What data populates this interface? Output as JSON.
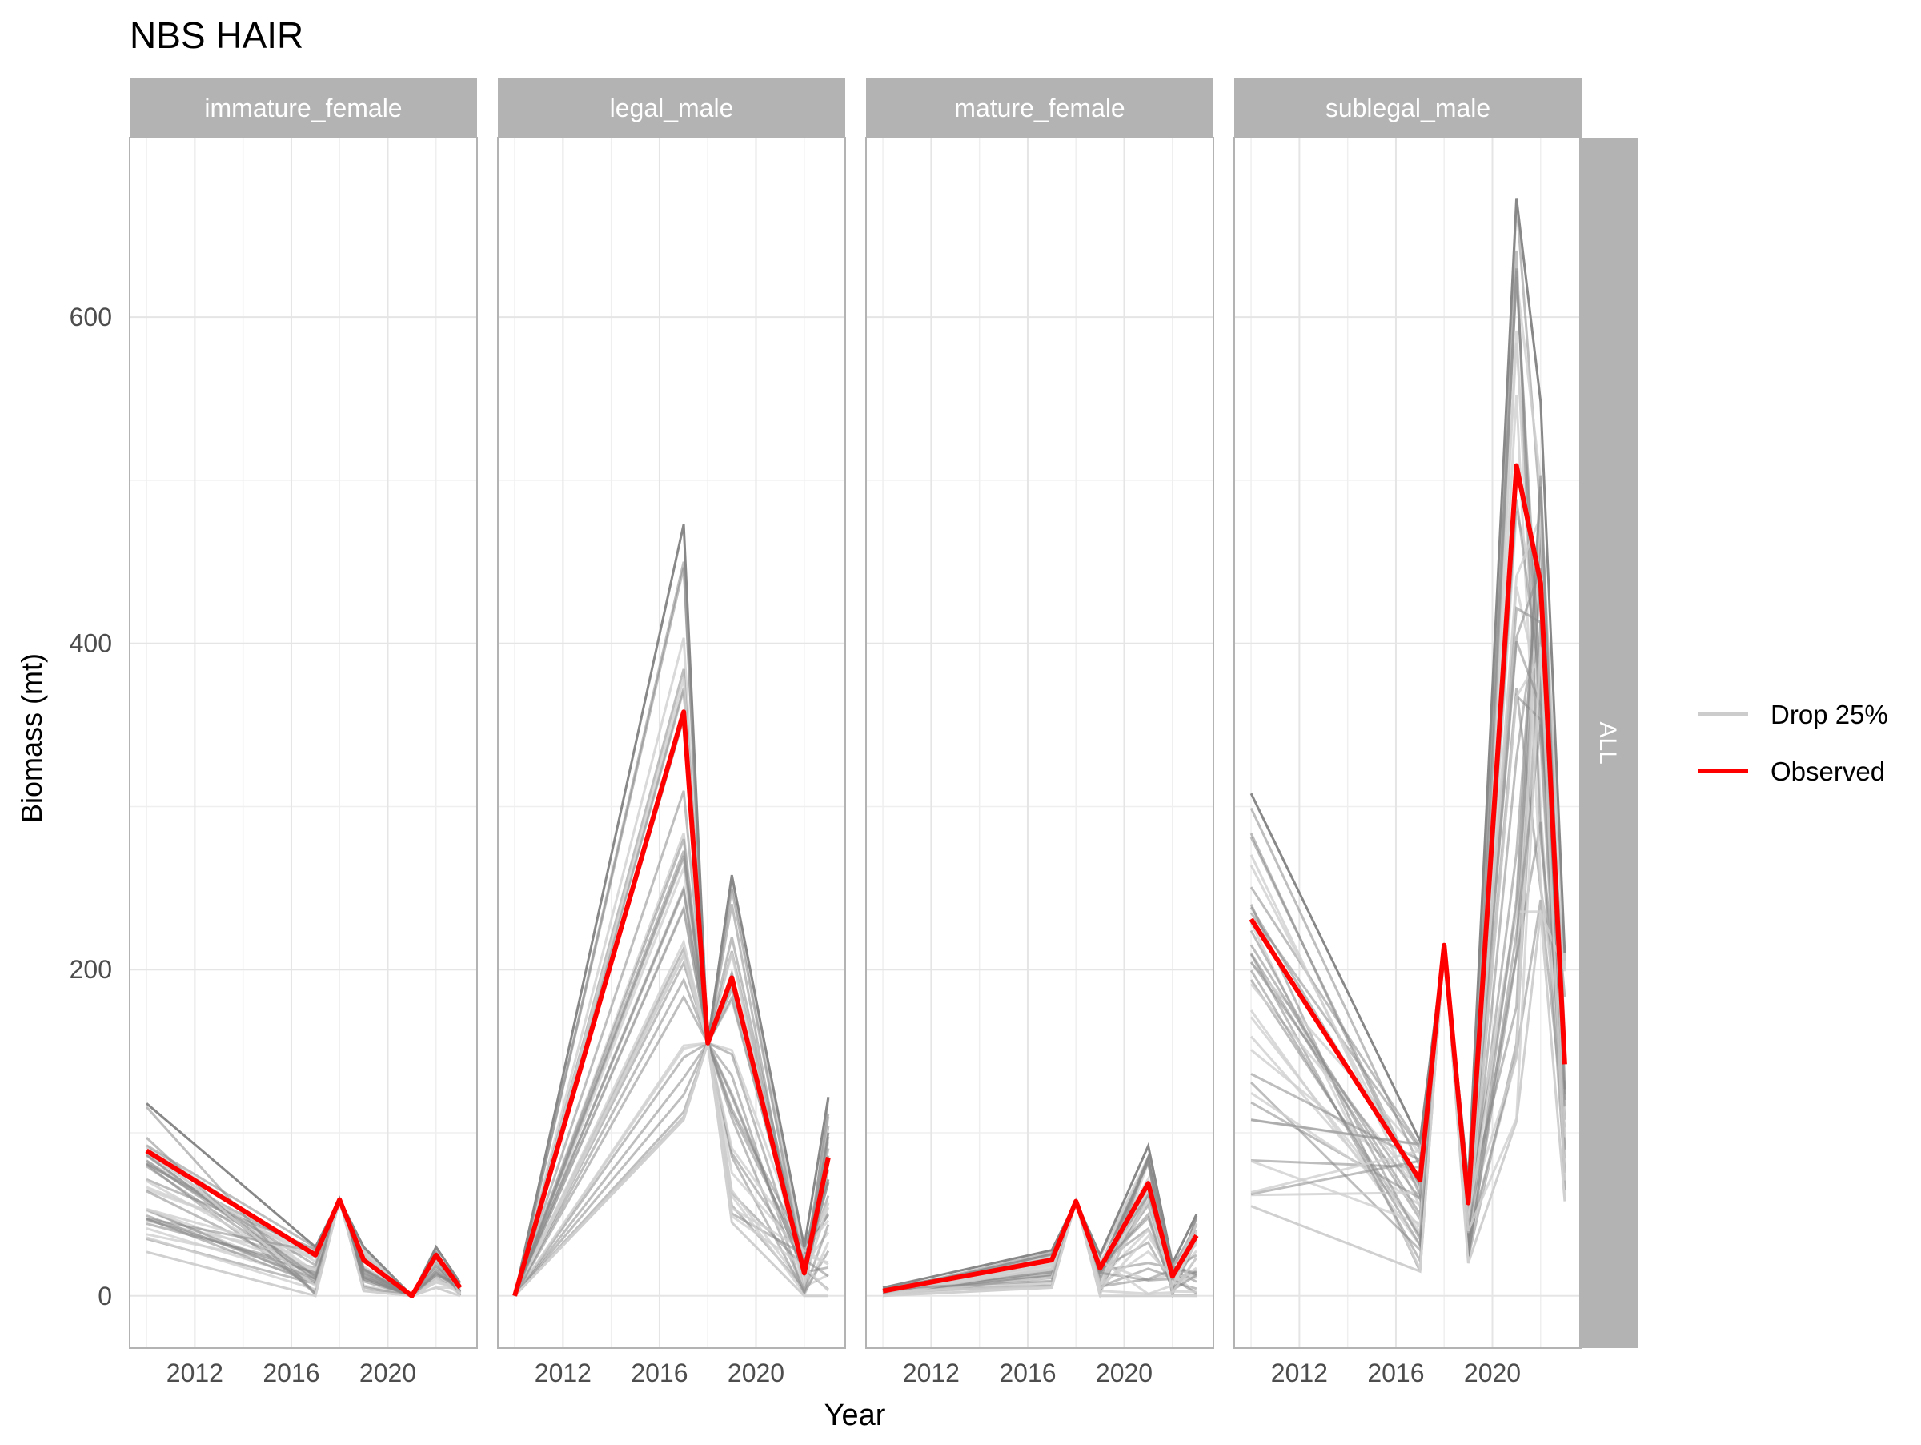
{
  "chart_data": {
    "type": "line",
    "title": "NBS HAIR",
    "xlabel": "Year",
    "ylabel": "Biomass (mt)",
    "xlim": [
      2009.3,
      2023.7
    ],
    "ylim": [
      -32,
      710
    ],
    "x_ticks": [
      2012,
      2016,
      2020
    ],
    "y_ticks": [
      0,
      200,
      400,
      600
    ],
    "grid": true,
    "row_strip": "ALL",
    "legend": {
      "position": "right",
      "entries": [
        {
          "label": "Drop 25%",
          "color": "#cccccc"
        },
        {
          "label": "Observed",
          "color": "#ff0000"
        }
      ]
    },
    "colors": {
      "observed": "#ff0000",
      "drop_light": "#d0d0d0",
      "drop_dark": "#888888",
      "strip": "#b3b3b3",
      "grid": "#e5e5e5",
      "panel_border": "#b3b3b3"
    },
    "panels": [
      {
        "name": "immature_female",
        "observed": {
          "x": [
            2010,
            2017,
            2018,
            2019,
            2021,
            2022,
            2023
          ],
          "y": [
            89,
            25,
            59,
            22,
            0,
            25,
            5
          ]
        },
        "drop_low": {
          "x": [
            2010,
            2017,
            2018,
            2019,
            2021,
            2022,
            2023
          ],
          "y": [
            27,
            0,
            59,
            3,
            0,
            5,
            0
          ]
        },
        "drop_high": {
          "x": [
            2010,
            2017,
            2018,
            2019,
            2021,
            2022,
            2023
          ],
          "y": [
            118,
            30,
            59,
            30,
            0,
            30,
            8
          ]
        }
      },
      {
        "name": "legal_male",
        "observed": {
          "x": [
            2010,
            2017,
            2018,
            2019,
            2022,
            2023
          ],
          "y": [
            0,
            358,
            155,
            195,
            14,
            85
          ]
        },
        "drop_low": {
          "x": [
            2010,
            2017,
            2018,
            2019,
            2022,
            2023
          ],
          "y": [
            0,
            108,
            155,
            45,
            0,
            0
          ]
        },
        "drop_high": {
          "x": [
            2010,
            2017,
            2018,
            2019,
            2022,
            2023
          ],
          "y": [
            0,
            473,
            155,
            258,
            30,
            122
          ]
        }
      },
      {
        "name": "mature_female",
        "observed": {
          "x": [
            2010,
            2017,
            2018,
            2019,
            2021,
            2022,
            2023
          ],
          "y": [
            3,
            22,
            58,
            17,
            69,
            12,
            37
          ]
        },
        "drop_low": {
          "x": [
            2010,
            2017,
            2018,
            2019,
            2021,
            2022,
            2023
          ],
          "y": [
            0,
            5,
            58,
            0,
            0,
            0,
            0
          ]
        },
        "drop_high": {
          "x": [
            2010,
            2017,
            2018,
            2019,
            2021,
            2022,
            2023
          ],
          "y": [
            5,
            28,
            58,
            25,
            92,
            20,
            50
          ]
        }
      },
      {
        "name": "sublegal_male",
        "observed": {
          "x": [
            2010,
            2017,
            2018,
            2019,
            2021,
            2022,
            2023
          ],
          "y": [
            231,
            71,
            215,
            57,
            509,
            437,
            142
          ]
        },
        "drop_low": {
          "x": [
            2010,
            2017,
            2018,
            2019,
            2021,
            2022,
            2023
          ],
          "y": [
            55,
            15,
            215,
            20,
            107,
            235,
            58
          ]
        },
        "drop_high": {
          "x": [
            2010,
            2017,
            2018,
            2019,
            2021,
            2022,
            2023
          ],
          "y": [
            308,
            95,
            215,
            70,
            673,
            548,
            210
          ]
        }
      }
    ]
  }
}
